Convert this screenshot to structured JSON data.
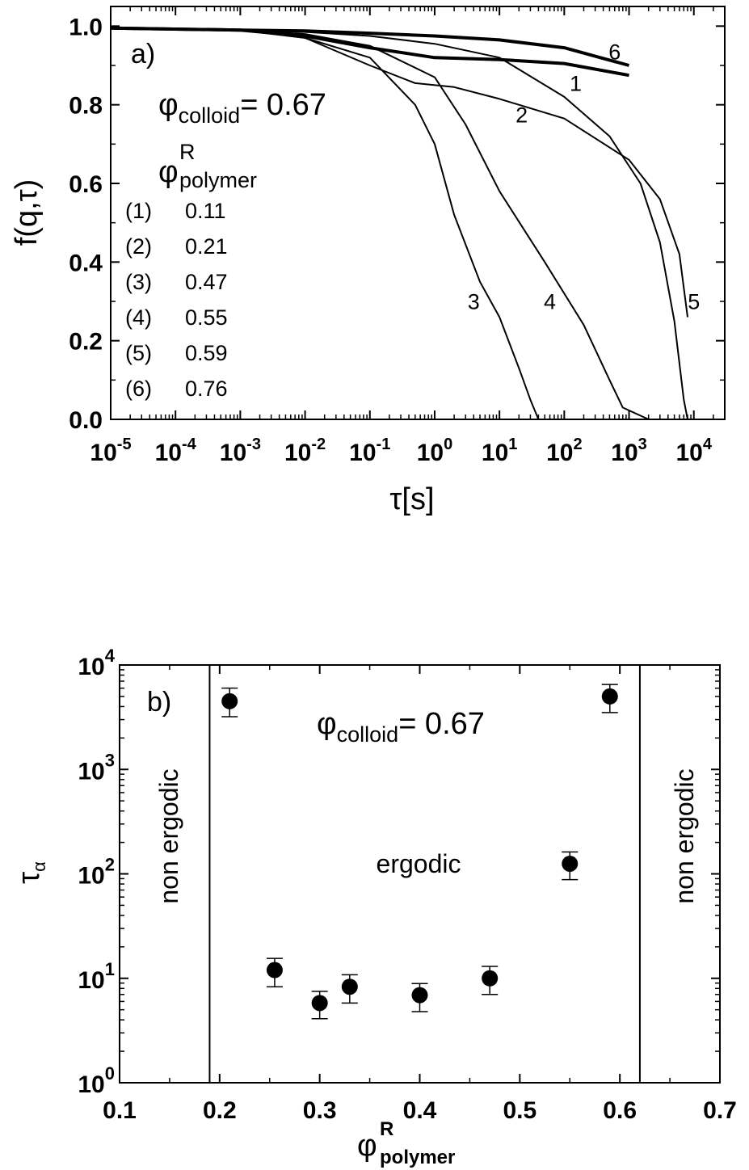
{
  "chart_data": [
    {
      "type": "line",
      "panel_label": "a)",
      "xlabel": "τ[s]",
      "ylabel": "f(q,τ)",
      "xscale": "log",
      "xlim": [
        1e-05,
        30000
      ],
      "ylim": [
        0,
        1.05
      ],
      "yticks": [
        0.0,
        0.2,
        0.4,
        0.6,
        0.8,
        1.0
      ],
      "ytick_labels": [
        "0.0",
        "0.2",
        "0.4",
        "0.6",
        "0.8",
        "1.0"
      ],
      "xticks": [
        1e-05,
        0.0001,
        0.001,
        0.01,
        0.1,
        1,
        10,
        100,
        1000,
        10000
      ],
      "xtick_labels": [
        {
          "base": "10",
          "exp": "-5"
        },
        {
          "base": "10",
          "exp": "-4"
        },
        {
          "base": "10",
          "exp": "-3"
        },
        {
          "base": "10",
          "exp": "-2"
        },
        {
          "base": "10",
          "exp": "-1"
        },
        {
          "base": "10",
          "exp": "0"
        },
        {
          "base": "10",
          "exp": "1"
        },
        {
          "base": "10",
          "exp": "2"
        },
        {
          "base": "10",
          "exp": "3"
        },
        {
          "base": "10",
          "exp": "4"
        }
      ],
      "annotation": {
        "phi": "φ",
        "sub": "colloid",
        "value": "= 0.67"
      },
      "legend_header": {
        "phi": "φ",
        "sup": "R",
        "sub": "polymer"
      },
      "legend_entries": [
        {
          "id": "(1)",
          "value": "0.11"
        },
        {
          "id": "(2)",
          "value": "0.21"
        },
        {
          "id": "(3)",
          "value": "0.47"
        },
        {
          "id": "(4)",
          "value": "0.55"
        },
        {
          "id": "(5)",
          "value": "0.59"
        },
        {
          "id": "(6)",
          "value": "0.76"
        }
      ],
      "series": [
        {
          "label": "1",
          "label_pos": [
            150,
            0.835
          ],
          "bold": true,
          "points": [
            [
              1e-05,
              0.995
            ],
            [
              0.001,
              0.99
            ],
            [
              0.01,
              0.975
            ],
            [
              0.1,
              0.945
            ],
            [
              1,
              0.92
            ],
            [
              10,
              0.915
            ],
            [
              100,
              0.905
            ],
            [
              1000,
              0.875
            ]
          ]
        },
        {
          "label": "2",
          "label_pos": [
            22,
            0.755
          ],
          "bold": false,
          "points": [
            [
              1e-05,
              0.995
            ],
            [
              0.001,
              0.99
            ],
            [
              0.01,
              0.97
            ],
            [
              0.1,
              0.9
            ],
            [
              0.5,
              0.855
            ],
            [
              2,
              0.845
            ],
            [
              10,
              0.815
            ],
            [
              100,
              0.765
            ],
            [
              1000,
              0.66
            ],
            [
              3000,
              0.56
            ],
            [
              6000,
              0.42
            ],
            [
              8000,
              0.26
            ]
          ]
        },
        {
          "label": "3",
          "label_pos": [
            4,
            0.28
          ],
          "bold": false,
          "points": [
            [
              1e-05,
              0.995
            ],
            [
              0.001,
              0.99
            ],
            [
              0.01,
              0.97
            ],
            [
              0.1,
              0.92
            ],
            [
              0.5,
              0.8
            ],
            [
              1,
              0.7
            ],
            [
              2,
              0.52
            ],
            [
              5,
              0.35
            ],
            [
              10,
              0.26
            ],
            [
              20,
              0.13
            ],
            [
              30,
              0.05
            ],
            [
              40,
              0.0
            ]
          ]
        },
        {
          "label": "4",
          "label_pos": [
            60,
            0.28
          ],
          "bold": false,
          "points": [
            [
              1e-05,
              0.995
            ],
            [
              0.001,
              0.99
            ],
            [
              0.01,
              0.98
            ],
            [
              0.1,
              0.95
            ],
            [
              1,
              0.87
            ],
            [
              3,
              0.75
            ],
            [
              10,
              0.58
            ],
            [
              50,
              0.4
            ],
            [
              200,
              0.24
            ],
            [
              500,
              0.1
            ],
            [
              800,
              0.03
            ],
            [
              2000,
              0.0
            ]
          ]
        },
        {
          "label": "5",
          "label_pos": [
            10000,
            0.28
          ],
          "bold": false,
          "points": [
            [
              1e-05,
              0.995
            ],
            [
              0.001,
              0.99
            ],
            [
              0.01,
              0.985
            ],
            [
              0.1,
              0.975
            ],
            [
              1,
              0.955
            ],
            [
              10,
              0.92
            ],
            [
              100,
              0.82
            ],
            [
              500,
              0.72
            ],
            [
              1500,
              0.6
            ],
            [
              3000,
              0.45
            ],
            [
              5000,
              0.25
            ],
            [
              7000,
              0.05
            ],
            [
              8000,
              0.0
            ]
          ]
        },
        {
          "label": "6",
          "label_pos": [
            600,
            0.915
          ],
          "bold": true,
          "points": [
            [
              1e-05,
              0.995
            ],
            [
              0.001,
              0.99
            ],
            [
              0.01,
              0.988
            ],
            [
              0.1,
              0.982
            ],
            [
              1,
              0.975
            ],
            [
              10,
              0.965
            ],
            [
              100,
              0.945
            ],
            [
              1000,
              0.9
            ]
          ]
        }
      ]
    },
    {
      "type": "scatter",
      "panel_label": "b)",
      "xlabel": {
        "phi": "φ",
        "sup": "R",
        "sub": "polymer"
      },
      "ylabel": {
        "main": "τ",
        "sub": "α"
      },
      "yscale": "log",
      "xlim": [
        0.1,
        0.7
      ],
      "ylim": [
        1,
        10000
      ],
      "xticks": [
        0.1,
        0.2,
        0.3,
        0.4,
        0.5,
        0.6,
        0.7
      ],
      "xtick_labels": [
        "0.1",
        "0.2",
        "0.3",
        "0.4",
        "0.5",
        "0.6",
        "0.7"
      ],
      "yticks": [
        1,
        10,
        100,
        1000,
        10000
      ],
      "ytick_labels": [
        {
          "base": "10",
          "exp": "0"
        },
        {
          "base": "10",
          "exp": "1"
        },
        {
          "base": "10",
          "exp": "2"
        },
        {
          "base": "10",
          "exp": "3"
        },
        {
          "base": "10",
          "exp": "4"
        }
      ],
      "annotation": {
        "phi": "φ",
        "sub": "colloid",
        "value": "= 0.67"
      },
      "region_labels": {
        "left": "non ergodic",
        "center": "ergodic",
        "right": "non ergodic"
      },
      "boundaries_x": [
        0.19,
        0.62
      ],
      "points": [
        {
          "x": 0.21,
          "y": 4500,
          "lo": 3200,
          "hi": 6000
        },
        {
          "x": 0.255,
          "y": 12,
          "lo": 8.3,
          "hi": 15.5
        },
        {
          "x": 0.3,
          "y": 5.8,
          "lo": 4.1,
          "hi": 7.5
        },
        {
          "x": 0.33,
          "y": 8.3,
          "lo": 5.8,
          "hi": 10.8
        },
        {
          "x": 0.4,
          "y": 6.9,
          "lo": 4.8,
          "hi": 8.9
        },
        {
          "x": 0.47,
          "y": 10,
          "lo": 7,
          "hi": 13
        },
        {
          "x": 0.55,
          "y": 125,
          "lo": 88,
          "hi": 162
        },
        {
          "x": 0.59,
          "y": 5000,
          "lo": 3500,
          "hi": 6500
        }
      ]
    }
  ]
}
